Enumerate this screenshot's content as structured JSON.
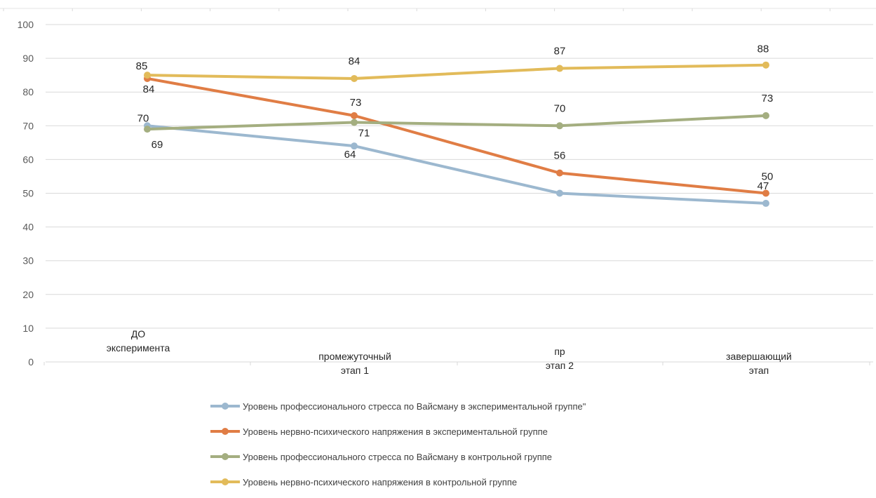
{
  "chart_data": {
    "type": "line",
    "title": "",
    "xlabel": "",
    "ylabel": "",
    "ylim": [
      0,
      100
    ],
    "yticks": [
      "0",
      "10",
      "20",
      "30",
      "40",
      "50",
      "60",
      "70",
      "80",
      "90",
      "100"
    ],
    "grid": true,
    "legend_position": "bottom",
    "categories": [
      [
        "ДО",
        "эксперимента"
      ],
      [
        "промежуточный",
        "этап 1"
      ],
      [
        "пр",
        "этап 2"
      ],
      [
        "завершающий",
        "этап"
      ]
    ],
    "series": [
      {
        "name": "Уровень профессионального стресса по Вайсману в экспериментальной группе\"",
        "color": "#9cb8cf",
        "values": [
          70,
          64,
          50,
          47
        ],
        "labels": [
          "70",
          "64",
          "",
          "47"
        ]
      },
      {
        "name": "Уровень нервно-психического напряжения в экспериментальной группе",
        "color": "#e07d45",
        "values": [
          84,
          73,
          56,
          50
        ],
        "labels": [
          "84",
          "73",
          "56",
          "50"
        ]
      },
      {
        "name": "Уровень профессионального стресса по Вайсману в контрольной группе",
        "color": "#a4ae80",
        "values": [
          69,
          71,
          70,
          73
        ],
        "labels": [
          "69",
          "71",
          "70",
          "73"
        ]
      },
      {
        "name": "Уровень нервно-психического напряжения в контрольной группе",
        "color": "#e2bb5a",
        "values": [
          85,
          84,
          87,
          88
        ],
        "labels": [
          "85",
          "84",
          "87",
          "88"
        ]
      }
    ]
  }
}
